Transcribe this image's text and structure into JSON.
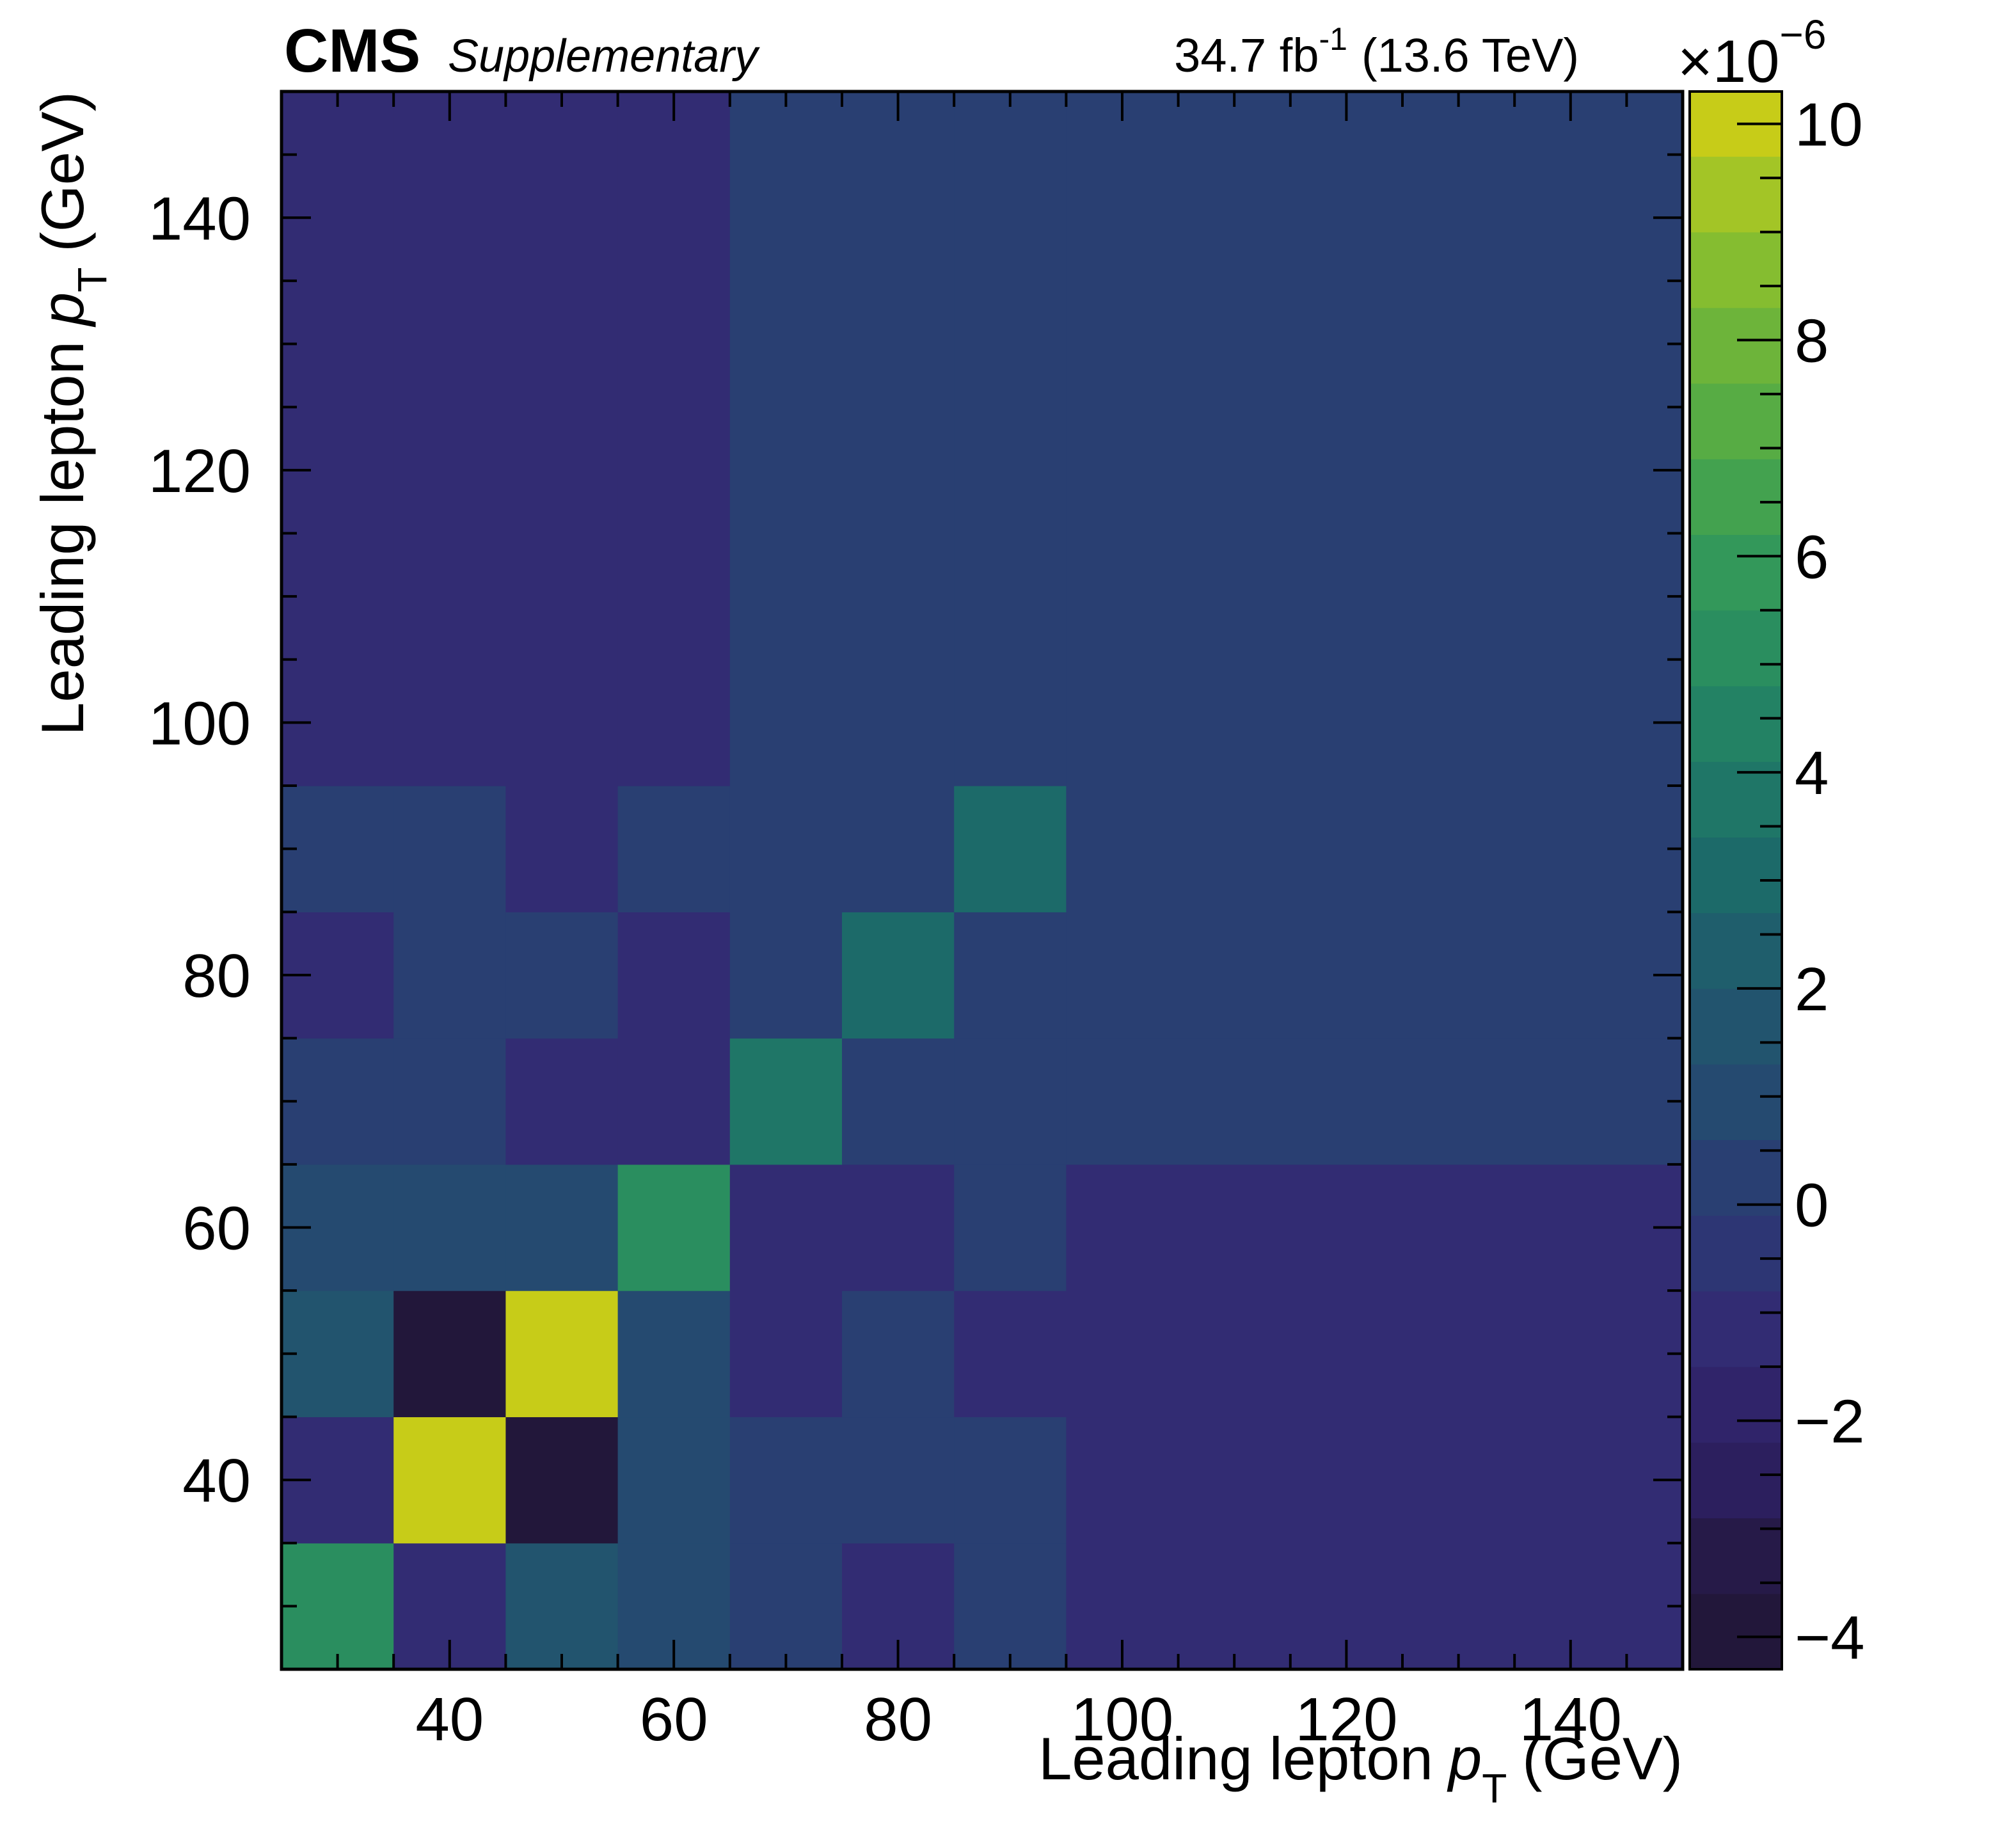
{
  "header": {
    "experiment": "CMS",
    "tag": "Supplementary",
    "lumi_value": "34.7 fb",
    "lumi_exp": "-1",
    "energy": "(13.6 TeV)"
  },
  "colorbar": {
    "multiplier_prefix": "×10",
    "multiplier_exp": "−6",
    "ticks": [
      -4,
      -2,
      0,
      2,
      4,
      6,
      8,
      10
    ],
    "tick_labels": [
      "−4",
      "−2",
      "0",
      "2",
      "4",
      "6",
      "8",
      "10"
    ],
    "range": [
      -4.3,
      10.3
    ],
    "palette": [
      "#22173a",
      "#261a48",
      "#2c1f5e",
      "#30246a",
      "#322c73",
      "#2d3674",
      "#293f72",
      "#254a70",
      "#22546e",
      "#1f5e6c",
      "#1c6a69",
      "#1f7667",
      "#238264",
      "#2a8e5f",
      "#33985a",
      "#43a24f",
      "#57ac44",
      "#6db43a",
      "#85bd30",
      "#a3c526",
      "#c7cc18",
      "#f3dc00"
    ],
    "palette_value_step": 0.7
  },
  "chart_data": {
    "type": "heatmap",
    "title": "",
    "xlabel": "Leading lepton",
    "ylabel": "Leading lepton",
    "axis_var": "p",
    "axis_sub": "T",
    "axis_unit": "(GeV)",
    "x_edges": [
      25,
      35,
      45,
      55,
      65,
      75,
      85,
      95,
      150
    ],
    "y_edges": [
      25,
      35,
      45,
      55,
      65,
      75,
      85,
      95,
      150
    ],
    "xlim": [
      25,
      150
    ],
    "ylim": [
      25,
      150
    ],
    "x_ticks": [
      40,
      60,
      80,
      100,
      120,
      140
    ],
    "y_ticks": [
      40,
      60,
      80,
      100,
      120,
      140
    ],
    "z_unit_scale": "1e-6",
    "z": [
      [
        5.1,
        -1.2,
        1.4,
        0.6,
        0.1,
        -1.2,
        0.4,
        -1.2
      ],
      [
        -1.2,
        10.0,
        -4.0,
        0.6,
        0.1,
        0.1,
        0.1,
        -1.2
      ],
      [
        1.4,
        -4.0,
        10.0,
        0.6,
        -1.2,
        0.1,
        -1.2,
        -1.2
      ],
      [
        0.6,
        0.6,
        0.6,
        5.1,
        -1.2,
        -1.2,
        0.1,
        -1.2
      ],
      [
        0.1,
        0.1,
        -1.2,
        -1.2,
        4.1,
        0.1,
        0.1,
        0.1
      ],
      [
        -1.2,
        0.1,
        0.1,
        -1.2,
        0.1,
        3.0,
        0.1,
        0.1
      ],
      [
        0.4,
        0.1,
        -1.2,
        0.1,
        0.1,
        0.1,
        2.8,
        0.4
      ],
      [
        -1.2,
        -1.2,
        -1.2,
        -1.2,
        0.1,
        0.1,
        0.4,
        0.4
      ]
    ],
    "grid": false,
    "legend": "colorbar-right"
  }
}
